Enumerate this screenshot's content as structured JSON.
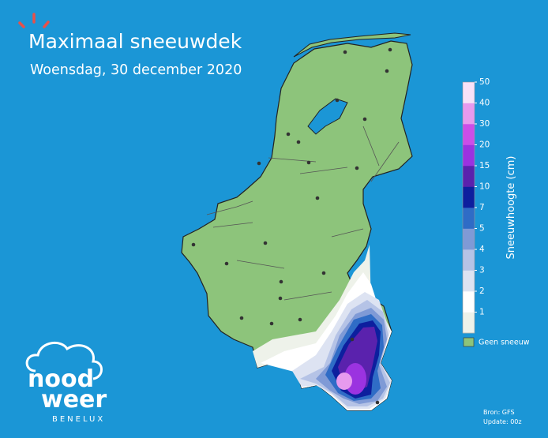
{
  "header": {
    "title": "Maximaal sneeuwdek",
    "subtitle": "Woensdag, 30 december 2020"
  },
  "colorbar": {
    "label": "Sneeuwhoogte (cm)",
    "ticks": [
      1,
      2,
      3,
      4,
      5,
      7,
      10,
      15,
      20,
      30,
      40,
      50
    ],
    "colors": [
      "#eef2ea",
      "#ffffff",
      "#dde3f2",
      "#b5c3e6",
      "#7f9ad6",
      "#2f6cc6",
      "#0d1f9e",
      "#5a22ad",
      "#9b33e0",
      "#cb4ee8",
      "#e79aee",
      "#f8e2f8"
    ]
  },
  "legend": {
    "label": "Geen sneeuw",
    "color": "#8dc47b"
  },
  "logo": {
    "line1": "nood",
    "line2": "weer",
    "region": "BENELUX"
  },
  "footer": {
    "source": "Bron: GFS",
    "update": "Update: 00z"
  }
}
